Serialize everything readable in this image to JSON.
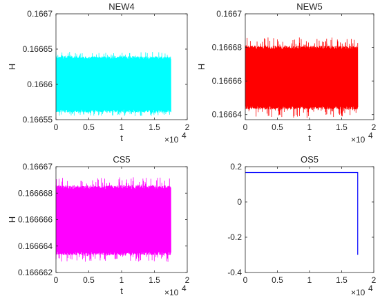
{
  "chart_data": [
    {
      "type": "line",
      "title": "NEW4",
      "xlabel": "t",
      "ylabel": "H",
      "x_exponent_label": "×10",
      "x_exponent_power": "4",
      "xlim": [
        0,
        2
      ],
      "ylim": [
        0.16655,
        0.1667
      ],
      "x_ticks": [
        "0",
        "0.5",
        "1",
        "1.5",
        "2"
      ],
      "y_ticks": [
        "0.16655",
        "0.1666",
        "0.16665",
        "0.1667"
      ],
      "color": "#00FFFF",
      "series": [
        {
          "x_range": [
            0,
            1.75
          ],
          "y_band": [
            0.16656,
            0.16664
          ],
          "y_extreme": [
            0.166555,
            0.166646
          ]
        }
      ]
    },
    {
      "type": "line",
      "title": "NEW5",
      "xlabel": "t",
      "ylabel": "H",
      "x_exponent_label": "×10",
      "x_exponent_power": "4",
      "xlim": [
        0,
        2
      ],
      "ylim": [
        0.166637,
        0.1667
      ],
      "x_ticks": [
        "0",
        "0.5",
        "1",
        "1.5",
        "2"
      ],
      "y_ticks": [
        "0.16664",
        "0.16666",
        "0.16668",
        "0.1667"
      ],
      "color": "#FF0000",
      "series": [
        {
          "x_range": [
            0,
            1.75
          ],
          "y_band": [
            0.166643,
            0.166681
          ],
          "y_extreme": [
            0.166638,
            0.166686
          ]
        }
      ]
    },
    {
      "type": "line",
      "title": "CS5",
      "xlabel": "t",
      "ylabel": "H",
      "x_exponent_label": "×10",
      "x_exponent_power": "4",
      "xlim": [
        0,
        2
      ],
      "ylim": [
        0.166662,
        0.16667
      ],
      "x_ticks": [
        "0",
        "0.5",
        "1",
        "1.5",
        "2"
      ],
      "y_ticks": [
        "0.166662",
        "0.166664",
        "0.166666",
        "0.166668",
        "0.16667"
      ],
      "color": "#FF00FF",
      "series": [
        {
          "x_range": [
            0,
            1.75
          ],
          "y_band": [
            0.1666633,
            0.1666686
          ],
          "y_extreme": [
            0.1666628,
            0.1666692
          ]
        }
      ]
    },
    {
      "type": "line",
      "title": "OS5",
      "xlabel": "",
      "ylabel": "",
      "x_exponent_label": "×10",
      "x_exponent_power": "4",
      "xlim": [
        0,
        2
      ],
      "ylim": [
        -0.4,
        0.2
      ],
      "x_ticks": [
        "0",
        "0.5",
        "1",
        "1.5",
        "2"
      ],
      "y_ticks": [
        "-0.4",
        "-0.2",
        "0",
        "0.2"
      ],
      "color": "#0000FF",
      "series": [
        {
          "x": [
            0,
            1.75,
            1.75
          ],
          "y": [
            0.1667,
            0.1667,
            -0.3
          ]
        }
      ]
    }
  ]
}
